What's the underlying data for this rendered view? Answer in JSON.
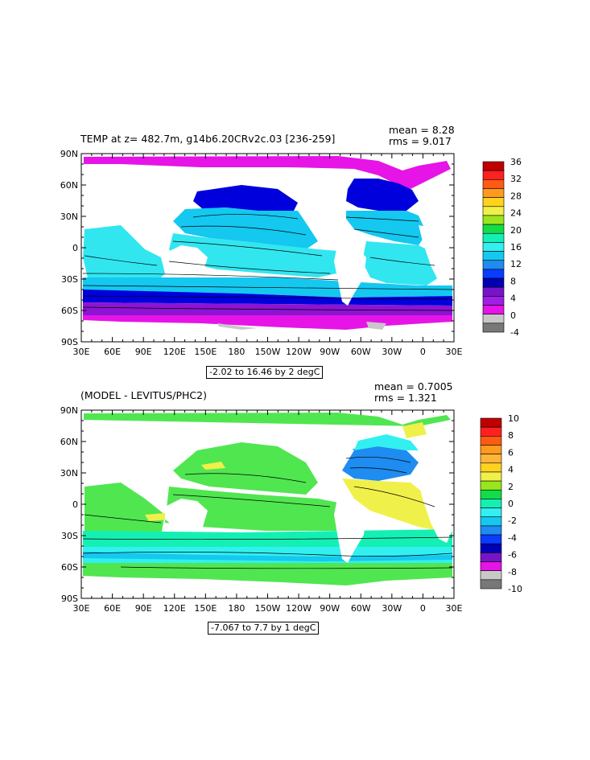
{
  "panel1": {
    "title": "TEMP at z= 482.7m, g14b6.20CRv2c.03 [236-259]",
    "mean": "mean = 8.28",
    "rms": "rms = 9.017",
    "contour_note": "-2.02 to 16.46 by 2 degC",
    "legend_labels": [
      "36",
      "32",
      "28",
      "24",
      "20",
      "16",
      "12",
      "8",
      "4",
      "0",
      "-4"
    ],
    "legend_colors": [
      "#c00000",
      "#ff2020",
      "#ff5a14",
      "#ff9a1e",
      "#ffd21e",
      "#f0f04a",
      "#9ae61e",
      "#14dc46",
      "#14f0b4",
      "#32f0f0",
      "#14c8f0",
      "#1e8cf0",
      "#0a3cff",
      "#0000b4",
      "#7814c8",
      "#a01ee6",
      "#e614e6",
      "#c8c8c8",
      "#787878"
    ],
    "ocean_colors": {
      "tropics": "#32e6f0",
      "mid": "#14c8f0",
      "deep": "#1e8cf0",
      "south": "#0000dc",
      "southern": "#8c14d2",
      "polar": "#e614e6"
    }
  },
  "panel2": {
    "title": "(MODEL - LEVITUS/PHC2)",
    "mean": "mean = 0.7005",
    "rms": "rms = 1.321",
    "contour_note": "-7.067 to 7.7 by 1 degC",
    "legend_labels": [
      "10",
      "8",
      "6",
      "4",
      "2",
      "0",
      "-2",
      "-4",
      "-6",
      "-8",
      "-10"
    ],
    "legend_colors": [
      "#c00000",
      "#ff2020",
      "#ff5a14",
      "#ff9a1e",
      "#ffb43c",
      "#ffd21e",
      "#f0f04a",
      "#9ae61e",
      "#14dc46",
      "#14f0b4",
      "#32f0f0",
      "#14c8f0",
      "#1e8cf0",
      "#0a3cff",
      "#0000b4",
      "#7814c8",
      "#e614e6",
      "#c8c8c8",
      "#787878"
    ],
    "ocean_colors": {
      "main": "#50e650",
      "pacific_n": "#14dc46",
      "warm": "#f0f04a",
      "cool": "#14f0b4",
      "cold": "#32f0f0",
      "colder": "#14c8f0"
    }
  },
  "axes": {
    "lat_labels": [
      "90N",
      "60N",
      "30N",
      "0",
      "30S",
      "60S",
      "90S"
    ],
    "lon_labels": [
      "30E",
      "60E",
      "90E",
      "120E",
      "150E",
      "180",
      "150W",
      "120W",
      "90W",
      "60W",
      "30W",
      "0",
      "30E"
    ]
  }
}
